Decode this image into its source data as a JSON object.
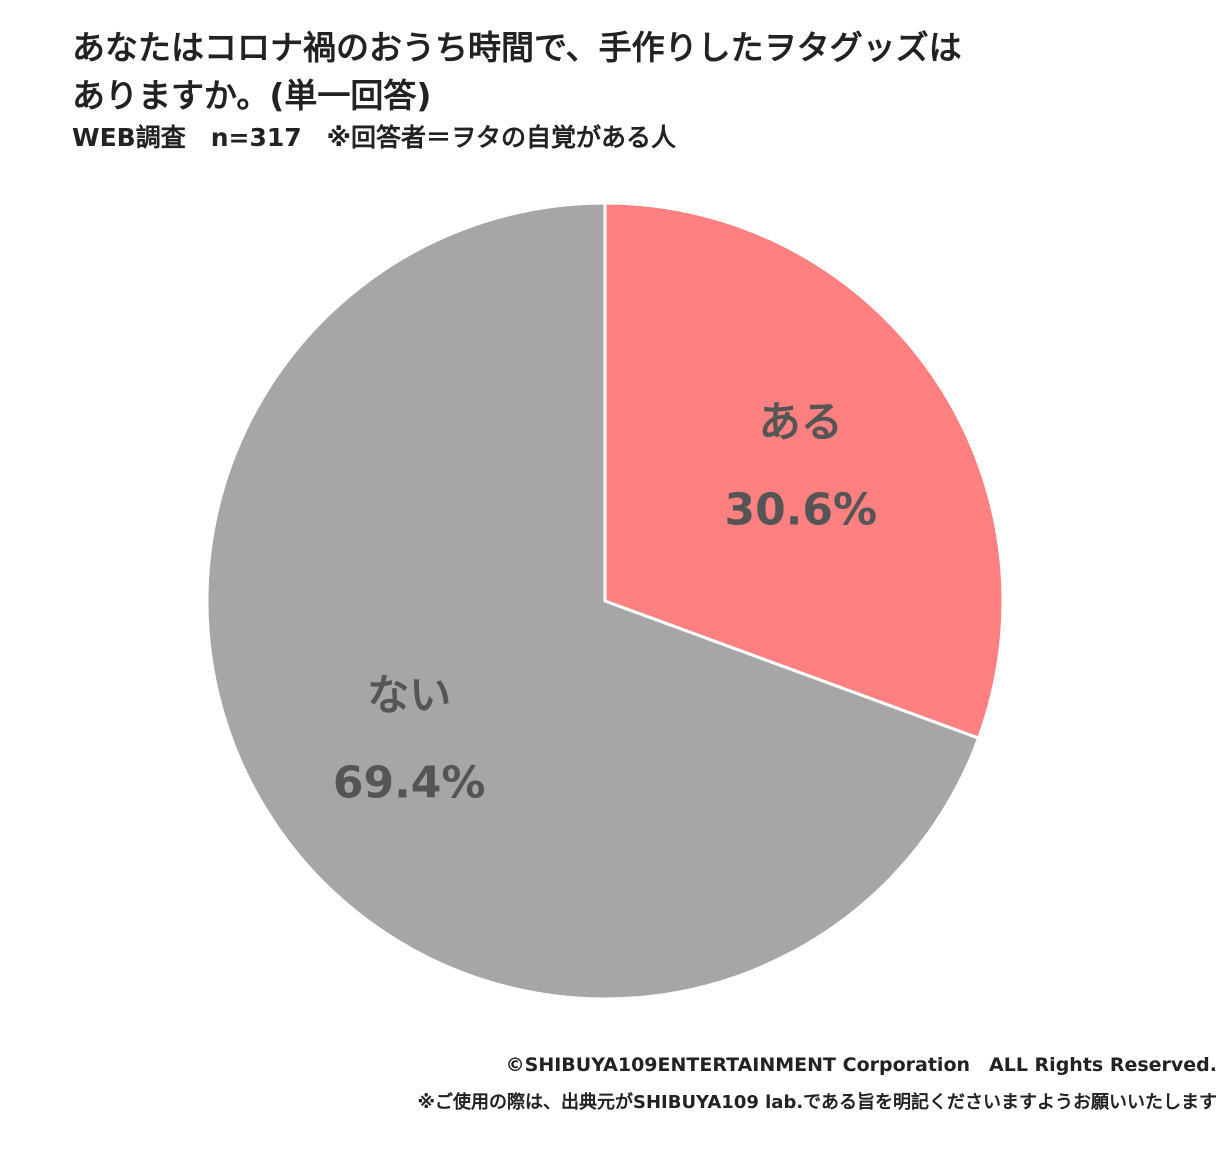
{
  "header": {
    "title_line1": "あなたはコロナ禍のおうち時間で、手作りしたヲタグッズは",
    "title_line2": "ありますか。(単一回答)",
    "subtitle": "WEB調査　n=317　※回答者＝ヲタの自覚がある人"
  },
  "chart_data": {
    "type": "pie",
    "slices": [
      {
        "label": "ある",
        "value": 30.6,
        "display": "30.6%",
        "color": "#ff8080"
      },
      {
        "label": "ない",
        "value": 69.4,
        "display": "69.4%",
        "color": "#a6a6a6"
      }
    ],
    "start": "12 o'clock",
    "direction": "clockwise",
    "label_color": "#555555",
    "border_color": "#ffffff"
  },
  "footer": {
    "copyright": "©SHIBUYA109ENTERTAINMENT Corporation　ALL Rights Reserved.",
    "notice": "※ご使用の際は、出典元がSHIBUYA109 lab.である旨を明記くださいますようお願いいたします"
  }
}
